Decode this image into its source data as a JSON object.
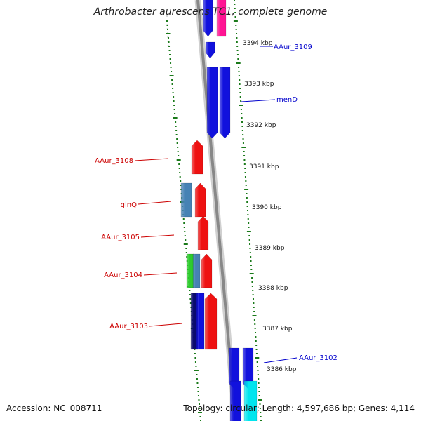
{
  "title": "Arthrobacter aurescens TC1, complete genome",
  "footer": {
    "accession": "Accession: NC_008711",
    "topology": "Topology: circular; Length: 4,597,686 bp; Genes: 4,114"
  },
  "colors": {
    "forward_red": "#ee1111",
    "reverse_blue": "#1111dd",
    "steelblue": "#4682b4",
    "magenta": "#ff1493",
    "cyan": "#00e5ee",
    "green": "#2ecc2e",
    "navy": "#0a0a6e",
    "tick_green": "#1a7a1a",
    "backbone_grey": "#888888",
    "label_red": "#cc0000",
    "label_blue": "#0000cc"
  },
  "kbp_ticks": [
    "3394 kbp",
    "3393 kbp",
    "3392 kbp",
    "3391 kbp",
    "3390 kbp",
    "3389 kbp",
    "3388 kbp",
    "3387 kbp",
    "3386 kbp"
  ],
  "gene_labels": [
    {
      "text": "AAur_3109",
      "side": "right",
      "color": "blue"
    },
    {
      "text": "menD",
      "side": "right",
      "color": "blue"
    },
    {
      "text": "AAur_3108",
      "side": "left",
      "color": "red"
    },
    {
      "text": "glnQ",
      "side": "left",
      "color": "red"
    },
    {
      "text": "AAur_3105",
      "side": "left",
      "color": "red"
    },
    {
      "text": "AAur_3104",
      "side": "left",
      "color": "red"
    },
    {
      "text": "AAur_3103",
      "side": "left",
      "color": "red"
    },
    {
      "text": "AAur_3102",
      "side": "right",
      "color": "blue"
    }
  ]
}
